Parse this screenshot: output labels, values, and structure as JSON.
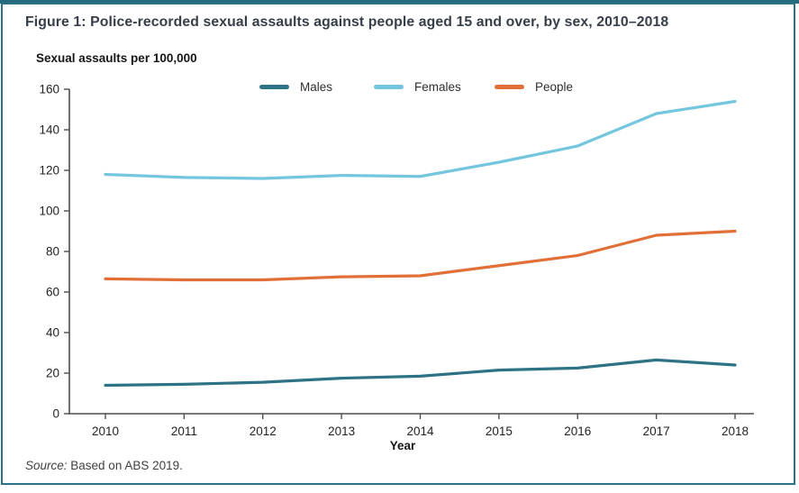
{
  "figure": {
    "title": "Figure 1: Police-recorded sexual assaults against people aged 15 and over, by sex, 2010–2018",
    "source_prefix": "Source:",
    "source_text": " Based on ABS 2019.",
    "border_color": "#2a7285",
    "title_color": "#363f49"
  },
  "chart_data": {
    "type": "line",
    "title": "Police-recorded sexual assaults against people aged 15 and over, by sex, 2010–2018",
    "ylabel": "Sexual assaults per 100,000",
    "xlabel": "Year",
    "categories": [
      "2010",
      "2011",
      "2012",
      "2013",
      "2014",
      "2015",
      "2016",
      "2017",
      "2018"
    ],
    "ylim": [
      0,
      160
    ],
    "ytick_step": 20,
    "grid": false,
    "legend_position": "top",
    "axis_color": "#4d4d4f",
    "series": [
      {
        "name": "Males",
        "color": "#2e7385",
        "values": [
          14,
          14.5,
          15.5,
          17.5,
          18.5,
          21.5,
          22.5,
          26.5,
          24
        ]
      },
      {
        "name": "Females",
        "color": "#74c6df",
        "values": [
          118,
          116.5,
          116,
          117.5,
          117,
          124,
          132,
          148,
          154
        ]
      },
      {
        "name": "People",
        "color": "#e16f38",
        "values": [
          66.5,
          66,
          66,
          67.5,
          68,
          73,
          78,
          88,
          90
        ]
      }
    ]
  }
}
